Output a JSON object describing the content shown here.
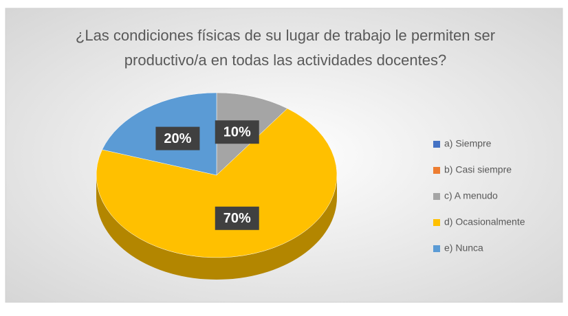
{
  "chart_data": {
    "type": "pie3d",
    "title": "¿Las condiciones físicas de su lugar de trabajo le permiten ser productivo/a en todas las actividades docentes?",
    "categories": [
      "a) Siempre",
      "b) Casi siempre",
      "c) A menudo",
      "d) Ocasionalmente",
      "e) Nunca"
    ],
    "values": [
      0,
      0,
      10,
      70,
      20
    ],
    "value_labels": [
      null,
      null,
      "10%",
      "70%",
      "20%"
    ],
    "colors": [
      "#4472c4",
      "#ed7d31",
      "#a5a5a5",
      "#ffc000",
      "#5b9bd5"
    ],
    "legend": "right"
  }
}
